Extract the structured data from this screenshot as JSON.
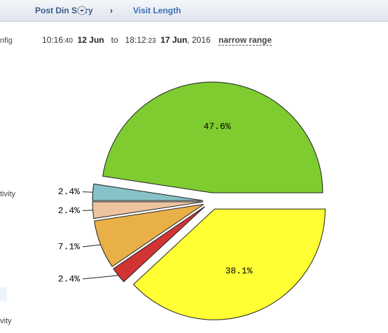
{
  "nav": {
    "items": [
      "Post Din Story",
      "Visit Length"
    ]
  },
  "sidebar": {
    "items": [
      "nfig",
      "tivity",
      "vity"
    ]
  },
  "range": {
    "start_hm": "10:16",
    "start_s": ":40",
    "start_date": "12 Jun",
    "to": "to",
    "end_hm": "18:12",
    "end_s": ":23",
    "end_date": "17 Jun",
    "end_year": ", 2016",
    "narrow": "narrow range"
  },
  "chart_data": {
    "type": "pie",
    "values": [
      47.6,
      2.4,
      2.4,
      7.1,
      2.4,
      38.1
    ],
    "value_labels": [
      "47.6%",
      "2.4%",
      "2.4%",
      "7.1%",
      "2.4%",
      "38.1%"
    ],
    "colors": [
      "#7ecc30",
      "#86c2c8",
      "#eec49e",
      "#e9b048",
      "#d23434",
      "#ffff33"
    ]
  }
}
